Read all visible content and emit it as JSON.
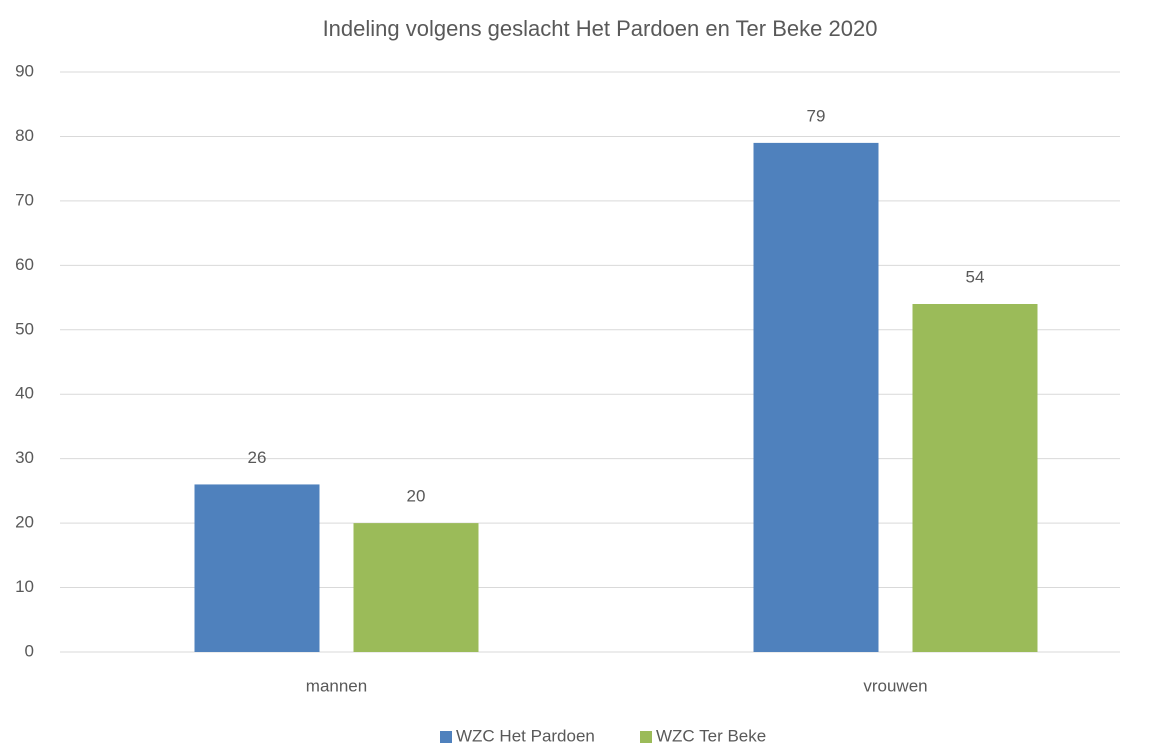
{
  "chart_data": {
    "type": "bar",
    "title": "Indeling volgens geslacht Het Pardoen en Ter Beke 2020",
    "categories": [
      "mannen",
      "vrouwen"
    ],
    "series": [
      {
        "name": "WZC Het Pardoen",
        "color": "#4f81bd",
        "values": [
          26,
          79
        ]
      },
      {
        "name": "WZC Ter Beke",
        "color": "#9bbb59",
        "values": [
          20,
          54
        ]
      }
    ],
    "ylim": [
      0,
      90
    ],
    "yticks": [
      0,
      10,
      20,
      30,
      40,
      50,
      60,
      70,
      80,
      90
    ],
    "grid": true,
    "legend": "bottom"
  }
}
